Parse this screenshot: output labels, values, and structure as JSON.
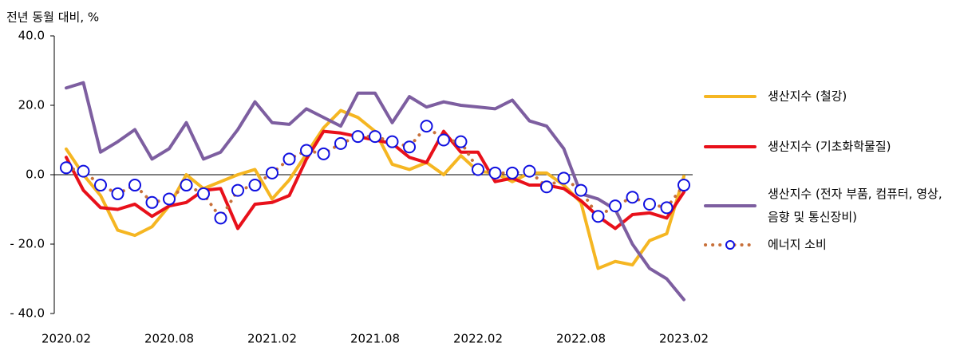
{
  "chart_data": {
    "type": "line",
    "y_label": "전년 동월 대비, %",
    "categories": [
      "2020.02",
      null,
      null,
      null,
      null,
      null,
      "2020.08",
      null,
      null,
      null,
      null,
      null,
      "2021.02",
      null,
      null,
      null,
      null,
      null,
      "2021.08",
      null,
      null,
      null,
      null,
      null,
      "2022.02",
      null,
      null,
      null,
      null,
      null,
      "2022.08",
      null,
      null,
      null,
      null,
      null,
      "2023.02"
    ],
    "ylim": [
      -40,
      40
    ],
    "yticks": [
      {
        "value": -40,
        "label": "- 40.0"
      },
      {
        "value": -20,
        "label": "- 20.0"
      },
      {
        "value": 0,
        "label": "0.0"
      },
      {
        "value": 20,
        "label": "20.0"
      },
      {
        "value": 40,
        "label": "40.0"
      }
    ],
    "series": [
      {
        "name": "생산지수 (철강)",
        "color": "#f5b622",
        "style": "solid",
        "values": [
          7.4,
          0,
          -6,
          -16,
          -17.5,
          -15,
          -9,
          0,
          -4,
          -2,
          0,
          1.5,
          -7,
          -1.5,
          6,
          13.5,
          18.5,
          16.5,
          12.5,
          3,
          1.5,
          3.5,
          0,
          5.5,
          1,
          0.5,
          -2,
          0.5,
          0.5,
          -3,
          -8,
          -27,
          -25,
          -26,
          -19,
          -17,
          -0.5
        ]
      },
      {
        "name": "생산지수 (기초화학물질)",
        "color": "#e8101a",
        "style": "solid",
        "values": [
          5,
          -4.5,
          -9.5,
          -10,
          -8.5,
          -12,
          -9,
          -8,
          -4.5,
          -4,
          -15.5,
          -8.5,
          -8,
          -6,
          4.5,
          12.5,
          12,
          11,
          10,
          9,
          5,
          3.5,
          12.5,
          6.5,
          6.5,
          -2,
          -1,
          -3,
          -3,
          -4,
          -7.5,
          -12,
          -15.5,
          -11.5,
          -11,
          -12.5,
          -5
        ]
      },
      {
        "name": "생산지수 (전자 부품, 컴퓨터, 영상, 음향 및 통신장비)",
        "color": "#7d5ea0",
        "style": "solid",
        "values": [
          25,
          26.5,
          6.5,
          9.5,
          13,
          4.5,
          7.5,
          15,
          4.5,
          6.5,
          13,
          21,
          15,
          14.5,
          19,
          16.5,
          14,
          23.5,
          23.5,
          15,
          22.5,
          19.5,
          21,
          20,
          19.5,
          19,
          21.5,
          15.5,
          14,
          7.5,
          -5.5,
          -7,
          -10,
          -20,
          -27,
          -30,
          -36
        ]
      },
      {
        "name": "에너지 소비",
        "color": "#c8703a",
        "style": "dotted",
        "marker_color": "#1010e0",
        "values": [
          2,
          1,
          -3,
          -5.5,
          -3,
          -8,
          -7,
          -3,
          -5.5,
          -12.5,
          -4.5,
          -3,
          0.5,
          4.5,
          7,
          6,
          9,
          11,
          11,
          9.5,
          8,
          14,
          10,
          9.5,
          1.5,
          0.5,
          0.5,
          1,
          -3.5,
          -1,
          -4.5,
          -12,
          -9,
          -6.5,
          -8.5,
          -9.5,
          -3
        ]
      }
    ]
  }
}
